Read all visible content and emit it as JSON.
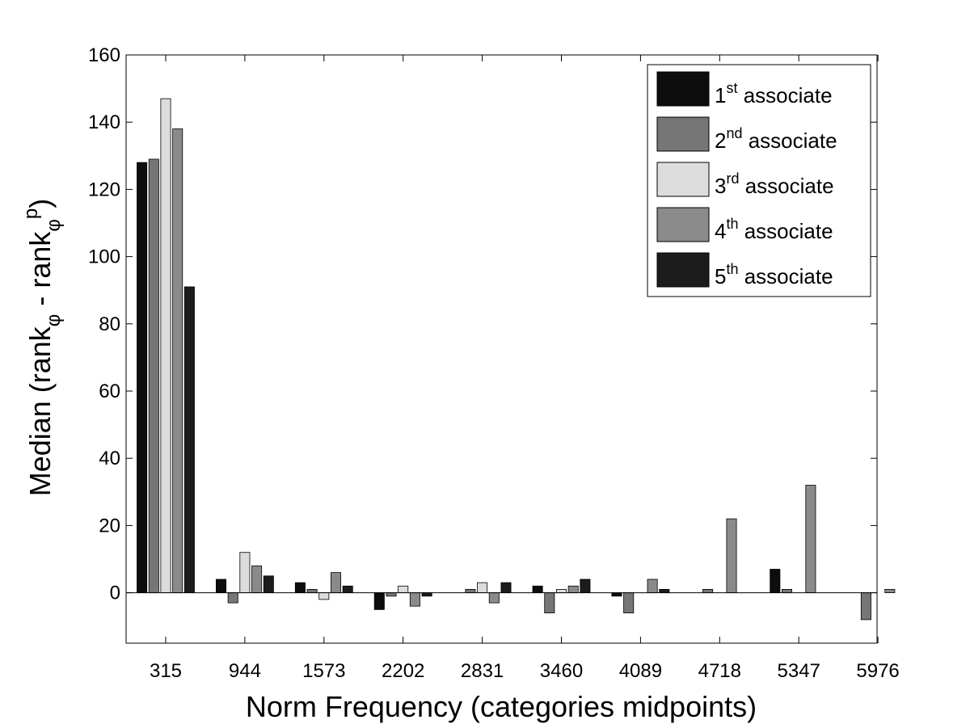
{
  "chart_data": {
    "type": "bar",
    "title": "",
    "xlabel": "Norm Frequency (categories midpoints)",
    "ylabel": {
      "prefix": "Median (rank",
      "sub1": "φ",
      "middle": " - rank",
      "sub2": "φ",
      "sup2": "p",
      "suffix": ")"
    },
    "categories": [
      "315",
      "944",
      "1573",
      "2202",
      "2831",
      "3460",
      "4089",
      "4718",
      "5347",
      "5976"
    ],
    "ylim": [
      -15,
      160
    ],
    "yticks": [
      "0",
      "20",
      "40",
      "60",
      "80",
      "100",
      "120",
      "140",
      "160"
    ],
    "grid": false,
    "legend_position": "top-right",
    "series": [
      {
        "name": "associate",
        "ordinal": "1",
        "suffix": "st",
        "color": "#0d0d0d",
        "values": [
          128,
          4,
          3,
          -5,
          0,
          2,
          -1,
          0,
          7,
          0
        ]
      },
      {
        "name": "associate",
        "ordinal": "2",
        "suffix": "nd",
        "color": "#767676",
        "values": [
          129,
          -3,
          1,
          -1,
          1,
          -6,
          -6,
          1,
          1,
          -8
        ]
      },
      {
        "name": "associate",
        "ordinal": "3",
        "suffix": "rd",
        "color": "#dcdcdc",
        "values": [
          147,
          12,
          -2,
          2,
          3,
          1,
          0,
          0,
          0,
          0
        ]
      },
      {
        "name": "associate",
        "ordinal": "4",
        "suffix": "th",
        "color": "#8a8a8a",
        "values": [
          138,
          8,
          6,
          -4,
          -3,
          2,
          4,
          22,
          32,
          1
        ]
      },
      {
        "name": "associate",
        "ordinal": "5",
        "suffix": "th",
        "color": "#1c1c1c",
        "values": [
          91,
          5,
          2,
          -1,
          3,
          4,
          1,
          0,
          0,
          0
        ]
      }
    ]
  }
}
